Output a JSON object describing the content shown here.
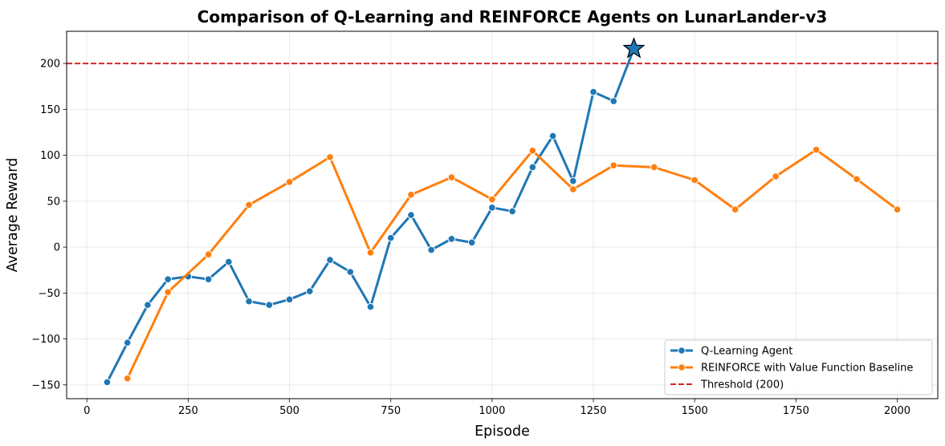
{
  "chart_data": {
    "type": "line",
    "title": "Comparison of Q-Learning and REINFORCE Agents on LunarLander-v3",
    "xlabel": "Episode",
    "ylabel": "Average Reward",
    "xlim": [
      -50,
      2100
    ],
    "ylim": [
      -165,
      235
    ],
    "xticks": [
      0,
      250,
      500,
      750,
      1000,
      1250,
      1500,
      1750,
      2000
    ],
    "xtick_labels": [
      "0",
      "250",
      "500",
      "750",
      "1000",
      "1250",
      "1500",
      "1750",
      "2000"
    ],
    "yticks": [
      -150,
      -100,
      -50,
      0,
      50,
      100,
      150,
      200
    ],
    "ytick_labels": [
      "−150",
      "−100",
      "−50",
      "0",
      "50",
      "100",
      "150",
      "200"
    ],
    "grid": true,
    "legend_position": "lower-right",
    "series": [
      {
        "name": "Q-Learning Agent",
        "color": "#1f77b4",
        "x": [
          50,
          100,
          150,
          200,
          250,
          300,
          350,
          400,
          450,
          500,
          550,
          600,
          650,
          700,
          750,
          800,
          850,
          900,
          950,
          1000,
          1050,
          1100,
          1150,
          1200,
          1250,
          1300,
          1350
        ],
        "y": [
          -147,
          -104,
          -63,
          -35,
          -32,
          -35,
          -16,
          -59,
          -63,
          -57,
          -48,
          -14,
          -27,
          -65,
          10,
          35,
          -3,
          9,
          5,
          43,
          39,
          87,
          121,
          72,
          169,
          159,
          216
        ]
      },
      {
        "name": "REINFORCE with Value Function Baseline",
        "color": "#ff7f0e",
        "x": [
          100,
          200,
          300,
          400,
          500,
          600,
          700,
          800,
          900,
          1000,
          1100,
          1200,
          1300,
          1400,
          1500,
          1600,
          1700,
          1800,
          1900,
          2000
        ],
        "y": [
          -143,
          -49,
          -8,
          46,
          71,
          98,
          -6,
          57,
          76,
          52,
          105,
          63,
          89,
          87,
          73,
          41,
          77,
          106,
          74,
          41
        ]
      }
    ],
    "threshold": {
      "name": "Threshold (200)",
      "value": 200,
      "color": "#d62728"
    },
    "star_marker": {
      "x": 1350,
      "y": 216,
      "color": "#1f77b4"
    }
  }
}
